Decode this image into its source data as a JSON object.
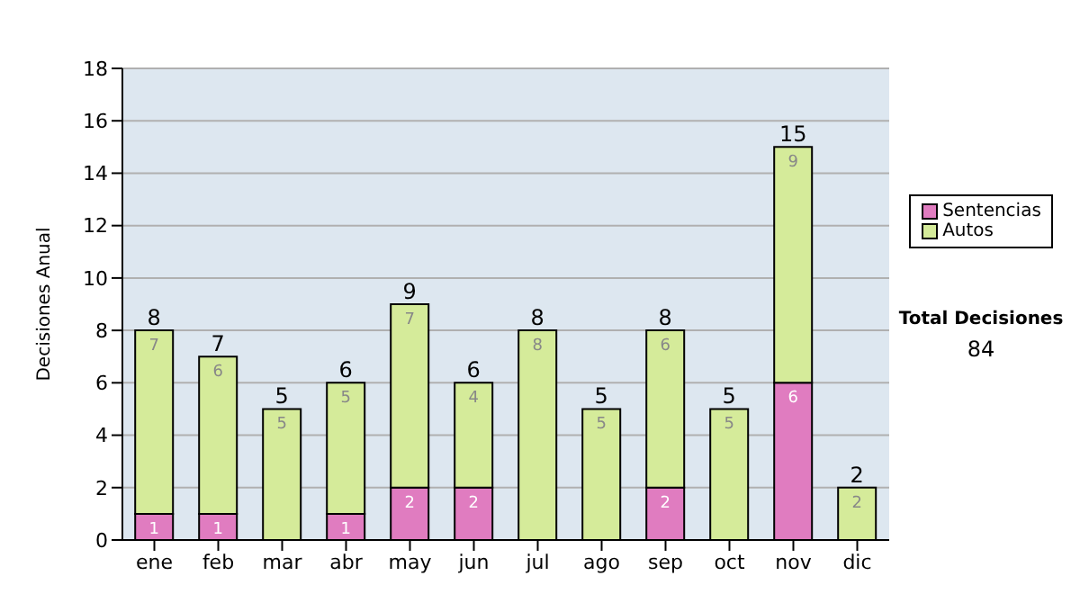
{
  "chart_data": {
    "type": "bar",
    "ylabel": "Decisiones Anual",
    "categories": [
      "ene",
      "feb",
      "mar",
      "abr",
      "may",
      "jun",
      "jul",
      "ago",
      "sep",
      "oct",
      "nov",
      "dic"
    ],
    "series": [
      {
        "name": "Sentencias",
        "color": "#e07cc0",
        "values": [
          1,
          1,
          0,
          1,
          2,
          2,
          0,
          0,
          2,
          0,
          6,
          0
        ],
        "value_labels": [
          "1",
          "1",
          null,
          "1",
          "2",
          "2",
          null,
          null,
          "2",
          null,
          "6",
          null
        ]
      },
      {
        "name": "Autos",
        "color": "#d5eb9a",
        "values": [
          7,
          6,
          5,
          5,
          7,
          4,
          8,
          5,
          6,
          5,
          9,
          2
        ],
        "value_labels": [
          "7",
          "6",
          "5",
          "5",
          "7",
          "4",
          "8",
          "5",
          "6",
          "5",
          "9",
          "2"
        ]
      }
    ],
    "stacked": true,
    "totals": [
      "8",
      "7",
      "5",
      "6",
      "9",
      "6",
      "8",
      "5",
      "8",
      "5",
      "15",
      "2"
    ],
    "ylim": [
      0,
      18
    ],
    "yticks": [
      0,
      2,
      4,
      6,
      8,
      10,
      12,
      14,
      16,
      18
    ],
    "grid": "y",
    "legend": "right",
    "annotations": [
      "Total Decisiones",
      "84"
    ]
  }
}
